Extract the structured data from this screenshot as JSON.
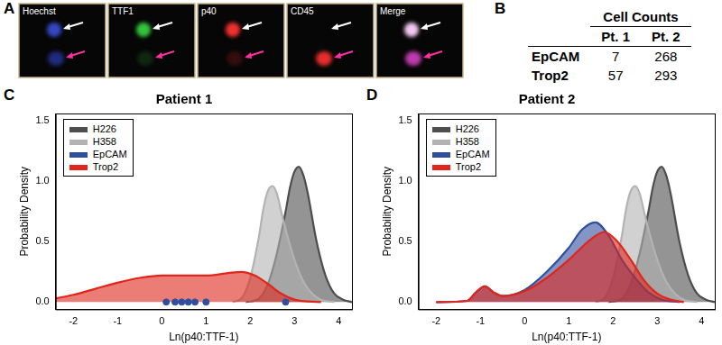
{
  "panel_labels": [
    "A",
    "B",
    "C",
    "D"
  ],
  "panel_a": {
    "channels": [
      "Hoechst",
      "TTF1",
      "p40",
      "CD45",
      "Merge"
    ]
  },
  "panel_b": {
    "header": "Cell Counts",
    "columns": [
      "Pt. 1",
      "Pt. 2"
    ],
    "rows": [
      [
        "EpCAM",
        7,
        268
      ],
      [
        "Trop2",
        57,
        293
      ]
    ]
  },
  "chart_data": [
    {
      "type": "density",
      "title": "Patient 1",
      "x_label": "Ln(p40:TTF-1)",
      "y_label": "Probability Density",
      "xlim": [
        -2.4,
        4.3
      ],
      "ylim": [
        -0.06,
        1.56
      ],
      "xticks": [
        -2,
        -1,
        0,
        1,
        2,
        3,
        4
      ],
      "yticks": [
        {
          "value": 0,
          "label": "0.0"
        },
        0.5,
        {
          "value": 1,
          "label": "1.0"
        },
        1.5
      ],
      "grid": false,
      "legend": "upper left",
      "series": [
        {
          "name": "H226",
          "color": "#4d4d4d",
          "type": "area",
          "x": [
            1.9,
            2.2,
            2.4,
            2.6,
            2.8,
            2.9,
            3.0,
            3.1,
            3.2,
            3.3,
            3.5,
            3.7,
            3.9,
            4.1,
            4.3
          ],
          "values": [
            0,
            0.03,
            0.15,
            0.4,
            0.75,
            0.95,
            1.08,
            1.12,
            1.05,
            0.9,
            0.5,
            0.22,
            0.07,
            0.02,
            0
          ]
        },
        {
          "name": "H358",
          "color": "#b3b3b3",
          "type": "area",
          "x": [
            1.6,
            1.8,
            2.0,
            2.2,
            2.3,
            2.4,
            2.5,
            2.6,
            2.7,
            2.8,
            3.0,
            3.2,
            3.4,
            3.6,
            3.9
          ],
          "values": [
            0,
            0.03,
            0.2,
            0.55,
            0.78,
            0.92,
            0.96,
            0.9,
            0.75,
            0.6,
            0.35,
            0.17,
            0.07,
            0.02,
            0
          ]
        },
        {
          "name": "EpCAM",
          "color": "#2e4e9e",
          "type": "scatter",
          "marker": "circle",
          "x": [
            0.1,
            0.3,
            0.45,
            0.6,
            0.75,
            1.0,
            2.8
          ],
          "values": [
            0,
            0,
            0,
            0,
            0,
            0,
            0
          ]
        },
        {
          "name": "Trop2",
          "color": "#e0261b",
          "type": "area",
          "x": [
            -2.4,
            -2,
            -1.5,
            -1,
            -0.5,
            0,
            0.5,
            1,
            1.5,
            1.8,
            2.1,
            2.4,
            2.7,
            3.0,
            3.3,
            3.6
          ],
          "values": [
            0.03,
            0.06,
            0.11,
            0.16,
            0.2,
            0.22,
            0.22,
            0.22,
            0.24,
            0.25,
            0.22,
            0.15,
            0.07,
            0.02,
            0.005,
            0
          ]
        }
      ]
    },
    {
      "type": "density",
      "title": "Patient 2",
      "x_label": "Ln(p40:TTF-1)",
      "y_label": "Probability Density",
      "xlim": [
        -2.4,
        4.3
      ],
      "ylim": [
        -0.06,
        1.56
      ],
      "xticks": [
        -2,
        -1,
        0,
        1,
        2,
        3,
        4
      ],
      "yticks": [
        {
          "value": 0,
          "label": "0.0"
        },
        0.5,
        {
          "value": 1,
          "label": "1.0"
        },
        1.5
      ],
      "grid": false,
      "legend": "upper left",
      "series": [
        {
          "name": "H226",
          "color": "#4d4d4d",
          "type": "area",
          "x": [
            1.9,
            2.2,
            2.4,
            2.6,
            2.8,
            2.9,
            3.0,
            3.1,
            3.2,
            3.3,
            3.5,
            3.7,
            3.9,
            4.1,
            4.3
          ],
          "values": [
            0,
            0.03,
            0.15,
            0.4,
            0.75,
            0.95,
            1.08,
            1.12,
            1.05,
            0.9,
            0.5,
            0.22,
            0.07,
            0.02,
            0
          ]
        },
        {
          "name": "H358",
          "color": "#b3b3b3",
          "type": "area",
          "x": [
            1.6,
            1.8,
            2.0,
            2.2,
            2.3,
            2.4,
            2.5,
            2.6,
            2.7,
            2.8,
            3.0,
            3.2,
            3.4,
            3.6,
            3.9
          ],
          "values": [
            0,
            0.03,
            0.2,
            0.55,
            0.78,
            0.92,
            0.96,
            0.9,
            0.75,
            0.6,
            0.35,
            0.17,
            0.07,
            0.02,
            0
          ]
        },
        {
          "name": "EpCAM",
          "color": "#2e4e9e",
          "type": "area",
          "x": [
            -2.0,
            -1.3,
            -1.1,
            -0.9,
            -0.7,
            -0.5,
            0,
            0.5,
            1.0,
            1.3,
            1.6,
            1.9,
            2.2,
            2.5,
            2.8,
            3.1,
            3.5
          ],
          "values": [
            0,
            0.01,
            0.08,
            0.13,
            0.08,
            0.05,
            0.1,
            0.25,
            0.45,
            0.6,
            0.66,
            0.55,
            0.35,
            0.2,
            0.08,
            0.02,
            0
          ]
        },
        {
          "name": "Trop2",
          "color": "#e0261b",
          "type": "area",
          "x": [
            -2.0,
            -1.3,
            -1.1,
            -0.9,
            -0.7,
            -0.5,
            0,
            0.5,
            1.0,
            1.5,
            1.8,
            2.1,
            2.4,
            2.7,
            3.0,
            3.3,
            3.6
          ],
          "values": [
            0,
            0.01,
            0.08,
            0.13,
            0.08,
            0.05,
            0.09,
            0.2,
            0.35,
            0.52,
            0.58,
            0.5,
            0.35,
            0.18,
            0.07,
            0.02,
            0
          ]
        }
      ]
    }
  ]
}
